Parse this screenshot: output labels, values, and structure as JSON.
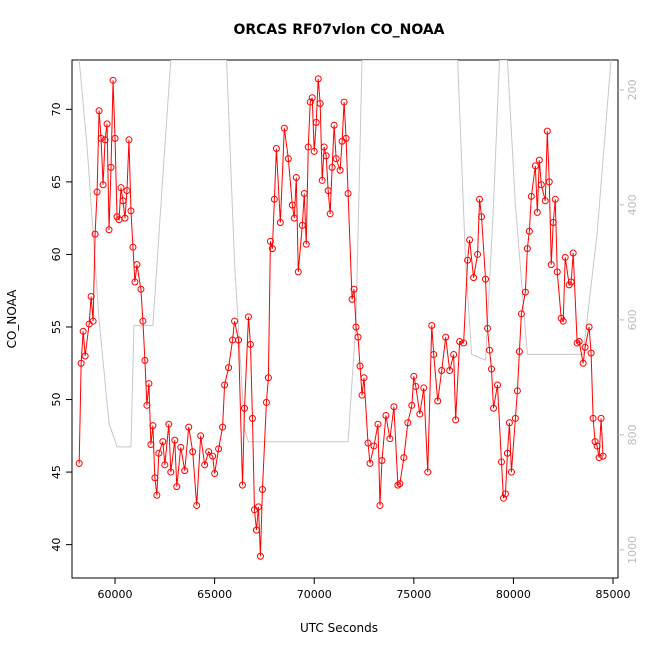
{
  "chart_data": {
    "type": "line",
    "title": "ORCAS RF07vlon CO_NOAA",
    "xlabel": "UTC Seconds",
    "ylabel": "CO_NOAA",
    "xlim": [
      57840,
      85250
    ],
    "ylim": [
      37.7,
      73.4
    ],
    "y2lim": [
      1049,
      148
    ],
    "xticks": [
      60000,
      65000,
      70000,
      75000,
      80000,
      85000
    ],
    "yticks": [
      40,
      45,
      50,
      55,
      60,
      65,
      70
    ],
    "y2ticks": [
      200,
      400,
      600,
      800,
      1000
    ],
    "series": [
      {
        "color": "#ff0000",
        "markers": true,
        "x": [
          58200,
          58300,
          58400,
          58500,
          58700,
          58800,
          58900,
          59000,
          59100,
          59200,
          59300,
          59400,
          59500,
          59600,
          59700,
          59800,
          59900,
          60000,
          60100,
          60200,
          60300,
          60400,
          60500,
          60600,
          60700,
          60800,
          60900,
          61000,
          61100,
          61300,
          61400,
          61500,
          61600,
          61700,
          61800,
          61900,
          62000,
          62100,
          62200,
          62400,
          62500,
          62700,
          62800,
          63000,
          63100,
          63300,
          63500,
          63700,
          63900,
          64100,
          64300,
          64500,
          64700,
          64900,
          65000,
          65200,
          65400,
          65500,
          65700,
          65900,
          66000,
          66200,
          66400,
          66500,
          66700,
          66800,
          66900,
          67000,
          67100,
          67200,
          67300,
          67400,
          67600,
          67700,
          67800,
          67900,
          68000,
          68100,
          68300,
          68500,
          68700,
          68900,
          69000,
          69100,
          69200,
          69400,
          69500,
          69600,
          69700,
          69800,
          69900,
          70000,
          70100,
          70200,
          70300,
          70400,
          70500,
          70600,
          70700,
          70800,
          70900,
          71000,
          71100,
          71300,
          71400,
          71500,
          71600,
          71700,
          71900,
          72000,
          72100,
          72200,
          72300,
          72400,
          72500,
          72700,
          72800,
          73000,
          73200,
          73300,
          73400,
          73600,
          73800,
          74000,
          74200,
          74300,
          74500,
          74700,
          74900,
          75000,
          75100,
          75300,
          75500,
          75700,
          75900,
          76000,
          76200,
          76400,
          76600,
          76800,
          77000,
          77100,
          77300,
          77500,
          77700,
          77800,
          78000,
          78200,
          78300,
          78400,
          78600,
          78700,
          78800,
          78900,
          79000,
          79200,
          79400,
          79500,
          79600,
          79700,
          79800,
          79900,
          80100,
          80200,
          80300,
          80400,
          80600,
          80700,
          80800,
          80900,
          81100,
          81200,
          81300,
          81400,
          81600,
          81700,
          81800,
          81900,
          82000,
          82100,
          82200,
          82400,
          82500,
          82600,
          82800,
          82900,
          83000,
          83200,
          83300,
          83500,
          83600,
          83800,
          83900,
          84000,
          84100,
          84200,
          84300,
          84400,
          84500
        ],
        "values": [
          45.6,
          52.5,
          54.7,
          53.0,
          55.2,
          57.1,
          55.4,
          61.4,
          64.3,
          69.9,
          68.0,
          64.8,
          67.9,
          69.0,
          61.7,
          66.0,
          72.0,
          68.0,
          62.6,
          62.4,
          64.6,
          63.7,
          62.5,
          64.4,
          67.9,
          63.0,
          60.5,
          58.1,
          59.3,
          57.6,
          55.4,
          52.7,
          49.6,
          51.1,
          46.9,
          48.2,
          44.6,
          43.4,
          46.3,
          47.1,
          45.5,
          48.3,
          45.0,
          47.2,
          44.0,
          46.7,
          45.1,
          48.1,
          46.4,
          42.7,
          47.5,
          45.5,
          46.4,
          46.1,
          44.9,
          46.6,
          48.1,
          51.0,
          52.2,
          54.1,
          55.4,
          54.1,
          44.1,
          49.4,
          55.7,
          53.8,
          48.7,
          42.4,
          41.0,
          42.6,
          39.2,
          43.8,
          49.8,
          51.5,
          60.9,
          60.4,
          63.8,
          67.3,
          62.2,
          68.7,
          66.6,
          63.4,
          62.5,
          65.3,
          58.8,
          62.0,
          64.2,
          60.7,
          67.4,
          70.5,
          70.8,
          67.1,
          69.1,
          72.1,
          70.4,
          65.1,
          67.4,
          66.8,
          64.4,
          62.8,
          66.0,
          68.9,
          66.6,
          65.8,
          67.8,
          70.5,
          68.0,
          64.2,
          56.9,
          57.6,
          55.0,
          54.3,
          52.3,
          50.3,
          51.5,
          47.0,
          45.6,
          46.8,
          48.3,
          42.7,
          45.8,
          48.9,
          47.3,
          49.5,
          44.1,
          44.2,
          46.0,
          48.4,
          49.6,
          51.6,
          50.9,
          49.0,
          50.8,
          45.0,
          55.1,
          53.1,
          49.9,
          52.0,
          54.3,
          52.0,
          53.1,
          48.6,
          54.0,
          53.9,
          59.6,
          61.0,
          58.4,
          60.0,
          63.8,
          62.6,
          58.3,
          54.9,
          53.4,
          52.1,
          49.4,
          51.0,
          45.7,
          43.2,
          43.5,
          46.3,
          48.4,
          45.0,
          48.7,
          50.6,
          53.3,
          55.9,
          57.4,
          60.4,
          61.6,
          64.0,
          66.1,
          62.9,
          66.5,
          64.8,
          63.7,
          68.5,
          65.0,
          59.3,
          62.2,
          63.8,
          58.8,
          55.6,
          55.4,
          59.8,
          57.9,
          58.1,
          60.1,
          53.9,
          54.0,
          52.5,
          53.6,
          55.0,
          53.2,
          48.7,
          47.1,
          46.8,
          46.0,
          48.7,
          46.1
        ]
      },
      {
        "color": "#c8c8c8",
        "axis": "y2",
        "markers": false,
        "x": [
          58200,
          58600,
          59200,
          59700,
          60100,
          60800,
          60950,
          61900,
          62400,
          62800,
          65600,
          66000,
          66500,
          66700,
          71700,
          72100,
          72400,
          77200,
          77600,
          77900,
          78600,
          79000,
          79300,
          79700,
          80100,
          80700,
          83500,
          84200,
          84900
        ],
        "values": [
          148,
          300,
          600,
          780,
          821,
          821,
          610,
          610,
          350,
          148,
          148,
          500,
          790,
          812,
          812,
          600,
          148,
          148,
          500,
          660,
          670,
          400,
          148,
          148,
          400,
          660,
          660,
          450,
          148
        ]
      }
    ]
  }
}
